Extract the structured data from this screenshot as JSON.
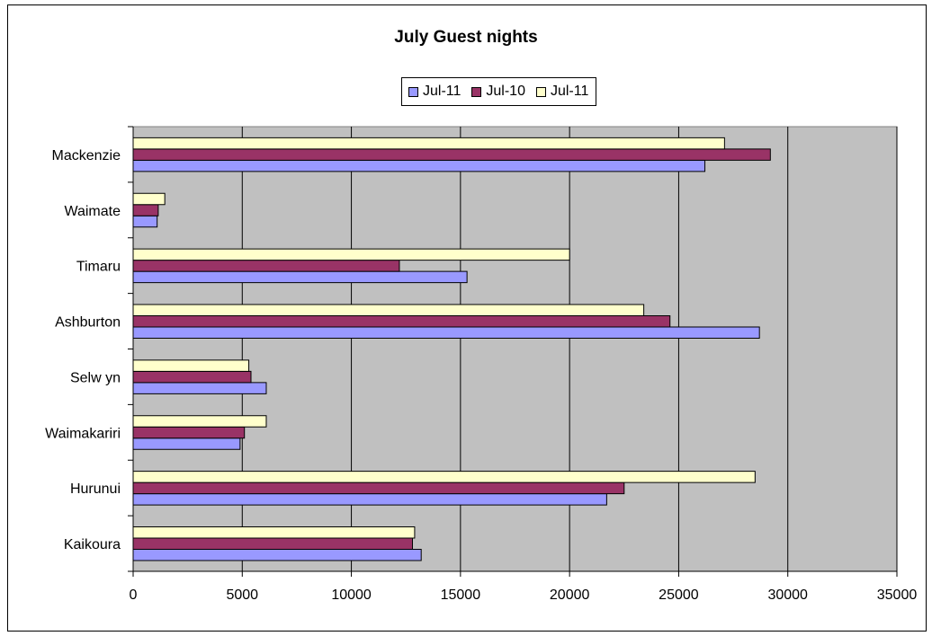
{
  "chart_data": {
    "type": "bar",
    "orientation": "horizontal",
    "title": "July Guest nights",
    "categories": [
      "Kaikoura",
      "Hurunui",
      "Waimakariri",
      "Selw yn",
      "Ashburton",
      "Timaru",
      "Waimate",
      "Mackenzie"
    ],
    "series": [
      {
        "name": "Jul-11",
        "color": "#9999ff",
        "values": [
          13200,
          21700,
          4900,
          6100,
          28700,
          15300,
          1100,
          26200
        ]
      },
      {
        "name": "Jul-10",
        "color": "#993366",
        "values": [
          12800,
          22500,
          5100,
          5400,
          24600,
          12200,
          1150,
          29200
        ]
      },
      {
        "name": "Jul-11",
        "color": "#ffffcc",
        "values": [
          12900,
          28500,
          6100,
          5300,
          23400,
          20000,
          1450,
          27100
        ]
      }
    ],
    "xlim": [
      0,
      35000
    ],
    "xticks": [
      0,
      5000,
      10000,
      15000,
      20000,
      25000,
      30000,
      35000
    ],
    "grid": "vertical",
    "plot_background": "#c0c0c0",
    "legend_position": "top"
  }
}
